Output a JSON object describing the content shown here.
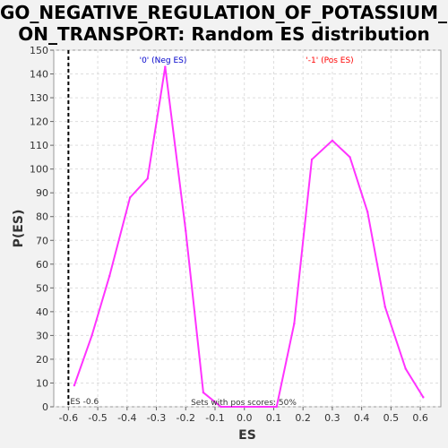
{
  "chart_data": {
    "type": "line",
    "title_line1": "GO_NEGATIVE_REGULATION_OF_POTASSIUM_I",
    "title_line2": "ON_TRANSPORT: Random ES distribution",
    "xlabel": "ES",
    "ylabel": "P(ES)",
    "xlim": [
      -0.65,
      0.67
    ],
    "ylim": [
      0,
      150
    ],
    "x_ticks": [
      "-0.6",
      "-0.5",
      "-0.4",
      "-0.3",
      "-0.2",
      "-0.1",
      "0.0",
      "0.1",
      "0.2",
      "0.3",
      "0.4",
      "0.5",
      "0.6"
    ],
    "y_ticks": [
      "0",
      "10",
      "20",
      "30",
      "40",
      "50",
      "60",
      "70",
      "80",
      "90",
      "100",
      "110",
      "120",
      "130",
      "140",
      "150"
    ],
    "grid": true,
    "series": [
      {
        "color": "#ff33ff",
        "x": [
          -0.58,
          -0.52,
          -0.46,
          -0.39,
          -0.33,
          -0.27,
          -0.2,
          -0.14,
          -0.08,
          -0.01,
          0.05,
          0.11,
          0.17,
          0.23,
          0.3,
          0.36,
          0.42,
          0.48,
          0.55,
          0.61
        ],
        "y": [
          9,
          30,
          55,
          88,
          96,
          143,
          74,
          6,
          0,
          0,
          0,
          0,
          35,
          104,
          112,
          105,
          82,
          42,
          16,
          4
        ]
      }
    ],
    "es_marker": {
      "x": -0.6,
      "label": "ES -0.6",
      "color": "#000000"
    },
    "annotations": {
      "neg_label": "'0' (Neg ES)",
      "neg_color": "#0000cc",
      "pos_label": "'-1' (Pos ES)",
      "pos_color": "#ff0000",
      "sets_label": "Sets with pos scores: 50%"
    }
  }
}
